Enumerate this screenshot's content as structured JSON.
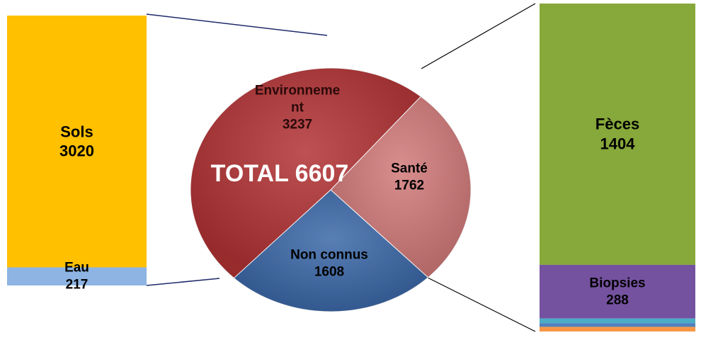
{
  "chart_data": {
    "type": "pie",
    "total_label": "TOTAL 6607",
    "categories": [
      "Santé",
      "Non connus",
      "Environnement"
    ],
    "values": [
      1762,
      1608,
      3237
    ],
    "colors": [
      "#d27a7a",
      "#3b68a8",
      "#b23234"
    ],
    "left_bar": {
      "categories": [
        "Sols",
        "Eau"
      ],
      "values": [
        3020,
        217
      ],
      "colors": [
        "#ffc000",
        "#8db4e2"
      ]
    },
    "right_bar": {
      "categories": [
        "Fèces",
        "Biopsies",
        null,
        null,
        null
      ],
      "values": [
        1404,
        288,
        25,
        20,
        25
      ],
      "colors": [
        "#87a83a",
        "#7552a0",
        "#4bacc6",
        "#4f81bd",
        "#f79646"
      ]
    }
  }
}
